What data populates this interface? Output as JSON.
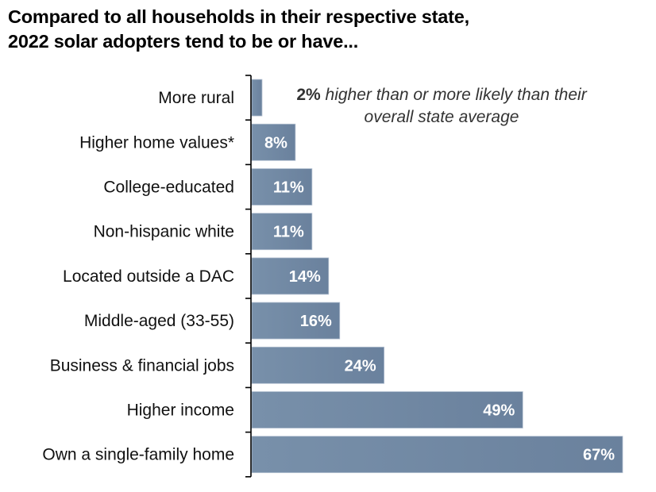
{
  "chart_data": {
    "type": "bar",
    "orientation": "horizontal",
    "title": "Compared to all households in their respective state, 2022 solar adopters tend to be or have...",
    "title_lines": [
      "Compared to all households in their respective state,",
      "2022 solar adopters tend to be or have..."
    ],
    "categories": [
      "More rural",
      "Higher home values*",
      "College-educated",
      "Non-hispanic white",
      "Located outside a DAC",
      "Middle-aged (33-55)",
      "Business & financial jobs",
      "Higher income",
      "Own a single-family home"
    ],
    "values": [
      2,
      8,
      11,
      11,
      14,
      16,
      24,
      49,
      67
    ],
    "value_labels": [
      "2%",
      "8%",
      "11%",
      "11%",
      "14%",
      "16%",
      "24%",
      "49%",
      "67%"
    ],
    "unit": "%",
    "annotation": {
      "bold": "2%",
      "text_line1": "higher than or more likely than their",
      "text_line2": "overall state average"
    },
    "xlabel": "",
    "ylabel": "",
    "xlim": [
      0,
      67
    ],
    "grid": false,
    "legend": "none",
    "bar_color": "#6f86a2"
  }
}
